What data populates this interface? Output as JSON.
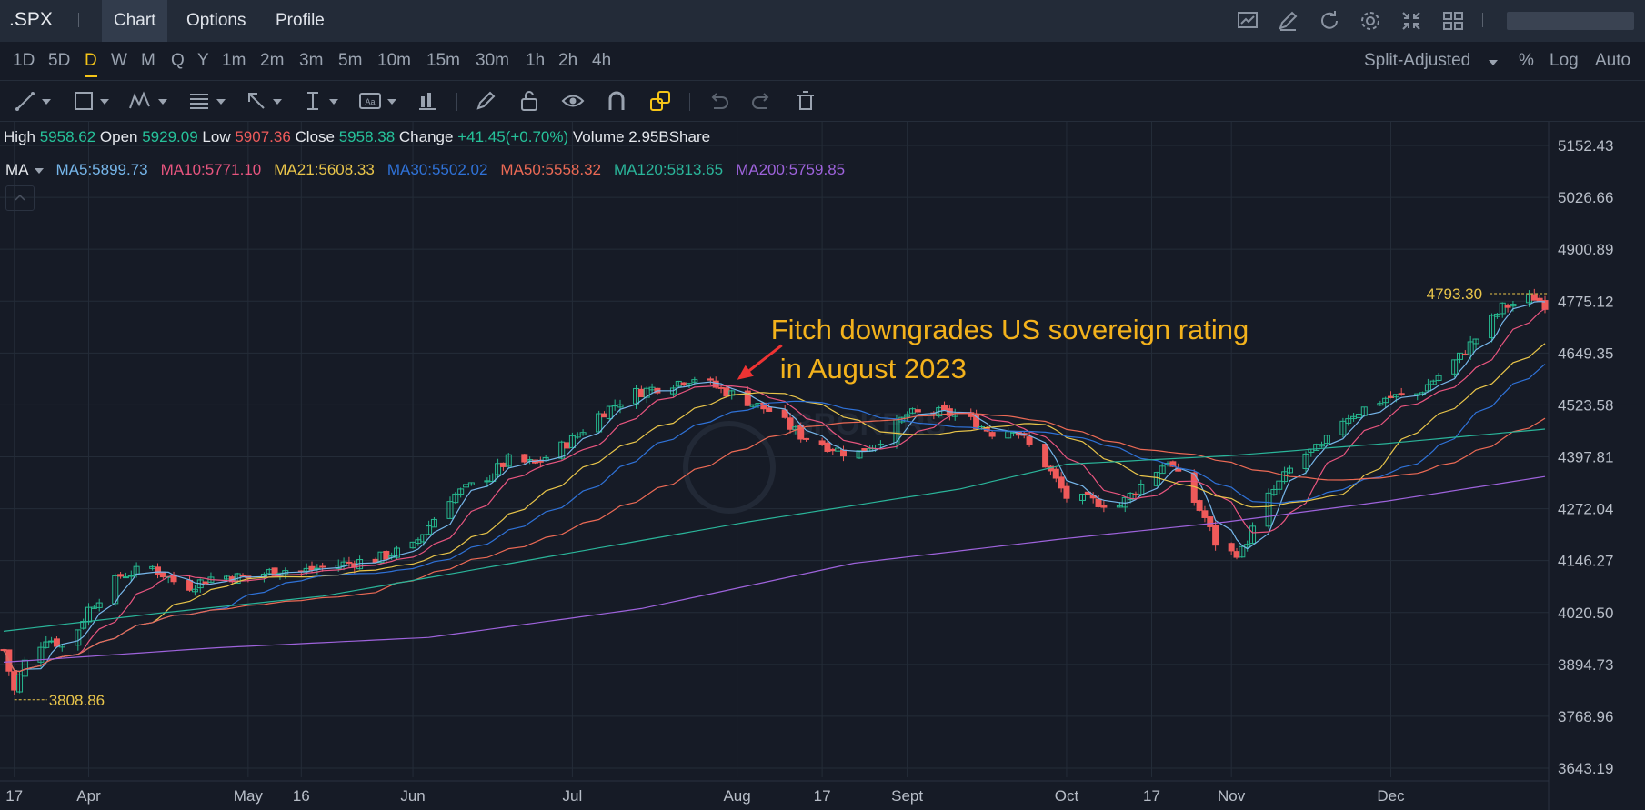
{
  "topbar": {
    "ticker": ".SPX",
    "tabs": [
      {
        "label": "Chart",
        "active": true
      },
      {
        "label": "Options",
        "active": false
      },
      {
        "label": "Profile",
        "active": false
      }
    ],
    "icons": [
      "chart-type-icon",
      "draw-icon",
      "refresh-icon",
      "settings-icon",
      "fullscreen-icon",
      "layout-icon"
    ]
  },
  "timeframes": {
    "items": [
      "1D",
      "5D",
      "D",
      "W",
      "M",
      "Q",
      "Y",
      "1m",
      "2m",
      "3m",
      "5m",
      "10m",
      "15m",
      "30m",
      "1h",
      "2h",
      "4h"
    ],
    "active": "D"
  },
  "options": {
    "adjust": "Split-Adjusted",
    "percent": "%",
    "log": "Log",
    "auto": "Auto"
  },
  "toolbar": {
    "tools": [
      "trend-line-icon",
      "rectangle-icon",
      "pattern-icon",
      "fib-icon",
      "arrow-icon",
      "measure-icon",
      "text-icon",
      "position-icon",
      "pencil-icon",
      "lock-icon",
      "eye-icon",
      "magnet-icon",
      "layers-icon",
      "undo-icon",
      "redo-icon",
      "delete-icon"
    ]
  },
  "ohlc": {
    "high_label": "High",
    "high": "5958.62",
    "open_label": "Open",
    "open": "5929.09",
    "low_label": "Low",
    "low": "5907.36",
    "close_label": "Close",
    "close": "5958.38",
    "change_label": "Change",
    "change": "+41.45(+0.70%)",
    "volume_label": "Volume",
    "volume": "2.95BShare"
  },
  "ma_legend": {
    "label": "MA",
    "items": [
      {
        "text": "MA5:5899.73",
        "color": "#76b6ea"
      },
      {
        "text": "MA10:5771.10",
        "color": "#e8557f"
      },
      {
        "text": "MA21:5608.33",
        "color": "#e9c54a"
      },
      {
        "text": "MA30:5502.02",
        "color": "#2f72d8"
      },
      {
        "text": "MA50:5558.32",
        "color": "#ec6a55"
      },
      {
        "text": "MA120:5813.65",
        "color": "#2ab59a"
      },
      {
        "text": "MA200:5759.85",
        "color": "#9e63dc"
      }
    ]
  },
  "chart_data": {
    "type": "candlestick",
    "yticks": [
      "5152.43",
      "5026.66",
      "4900.89",
      "4775.12",
      "4649.35",
      "4523.58",
      "4397.81",
      "4272.04",
      "4146.27",
      "4020.50",
      "3894.73",
      "3768.96",
      "3643.19"
    ],
    "ylim": [
      3643.19,
      5152.43
    ],
    "xticks": [
      {
        "label": "17",
        "d": 2
      },
      {
        "label": "Apr",
        "d": 16
      },
      {
        "label": "May",
        "d": 46
      },
      {
        "label": "16",
        "d": 56
      },
      {
        "label": "Jun",
        "d": 77
      },
      {
        "label": "Jul",
        "d": 107
      },
      {
        "label": "Aug",
        "d": 138
      },
      {
        "label": "17",
        "d": 154
      },
      {
        "label": "Sept",
        "d": 170
      },
      {
        "label": "Oct",
        "d": 200
      },
      {
        "label": "17",
        "d": 216
      },
      {
        "label": "Nov",
        "d": 231
      },
      {
        "label": "Dec",
        "d": 261
      }
    ],
    "x_range_days": [
      0,
      290
    ],
    "grid": true,
    "anchors": [
      [
        0,
        3930
      ],
      [
        2,
        3830
      ],
      [
        4,
        3900
      ],
      [
        8,
        3960
      ],
      [
        12,
        3935
      ],
      [
        16,
        4030
      ],
      [
        22,
        4110
      ],
      [
        28,
        4130
      ],
      [
        34,
        4080
      ],
      [
        40,
        4110
      ],
      [
        46,
        4105
      ],
      [
        52,
        4125
      ],
      [
        56,
        4120
      ],
      [
        62,
        4135
      ],
      [
        70,
        4150
      ],
      [
        77,
        4180
      ],
      [
        84,
        4300
      ],
      [
        90,
        4340
      ],
      [
        95,
        4390
      ],
      [
        100,
        4380
      ],
      [
        107,
        4440
      ],
      [
        112,
        4500
      ],
      [
        118,
        4550
      ],
      [
        124,
        4570
      ],
      [
        130,
        4590
      ],
      [
        137,
        4550
      ],
      [
        144,
        4510
      ],
      [
        150,
        4450
      ],
      [
        156,
        4420
      ],
      [
        160,
        4400
      ],
      [
        166,
        4450
      ],
      [
        170,
        4500
      ],
      [
        175,
        4505
      ],
      [
        180,
        4500
      ],
      [
        187,
        4450
      ],
      [
        190,
        4470
      ],
      [
        196,
        4380
      ],
      [
        200,
        4300
      ],
      [
        205,
        4290
      ],
      [
        210,
        4280
      ],
      [
        214,
        4330
      ],
      [
        219,
        4390
      ],
      [
        226,
        4250
      ],
      [
        229,
        4160
      ],
      [
        233,
        4170
      ],
      [
        238,
        4300
      ],
      [
        244,
        4400
      ],
      [
        248,
        4420
      ],
      [
        252,
        4490
      ],
      [
        260,
        4540
      ],
      [
        266,
        4550
      ],
      [
        274,
        4640
      ],
      [
        282,
        4760
      ],
      [
        288,
        4785
      ],
      [
        290,
        4769
      ]
    ],
    "ma_lines": [
      {
        "name": "MA5",
        "color": "#76b6ea",
        "period": 5
      },
      {
        "name": "MA10",
        "color": "#e8557f",
        "period": 10
      },
      {
        "name": "MA21",
        "color": "#e9c54a",
        "period": 21
      },
      {
        "name": "MA30",
        "color": "#2f72d8",
        "period": 30
      },
      {
        "name": "MA50",
        "color": "#ec6a55",
        "period": 50
      },
      {
        "name": "MA120",
        "color": "#2ab59a",
        "anchors": [
          [
            0,
            3975
          ],
          [
            30,
            4020
          ],
          [
            60,
            4060
          ],
          [
            100,
            4150
          ],
          [
            140,
            4240
          ],
          [
            180,
            4320
          ],
          [
            200,
            4380
          ],
          [
            230,
            4400
          ],
          [
            260,
            4430
          ],
          [
            290,
            4465
          ]
        ]
      },
      {
        "name": "MA200",
        "color": "#9e63dc",
        "anchors": [
          [
            0,
            3900
          ],
          [
            40,
            3935
          ],
          [
            80,
            3960
          ],
          [
            120,
            4030
          ],
          [
            160,
            4140
          ],
          [
            200,
            4200
          ],
          [
            230,
            4240
          ],
          [
            260,
            4290
          ],
          [
            290,
            4350
          ]
        ]
      }
    ],
    "markers": [
      {
        "label": "4793.30",
        "d": 283,
        "value": 4793.3
      },
      {
        "label": "3808.86",
        "d": 2,
        "value": 3808.86
      }
    ],
    "annotation": {
      "lines": [
        "Fitch downgrades US sovereign rating",
        "in August 2023"
      ],
      "d": 137,
      "value": 4580
    }
  }
}
